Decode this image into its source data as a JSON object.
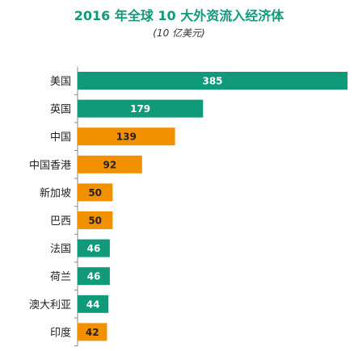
{
  "chart_data": {
    "type": "bar",
    "orientation": "horizontal",
    "title": "2016 年全球 10 大外资流入经济体",
    "subtitle": "(10 亿美元)",
    "categories": [
      "美国",
      "英国",
      "中国",
      "中国香港",
      "新加坡",
      "巴西",
      "法国",
      "荷兰",
      "澳大利亚",
      "印度"
    ],
    "values": [
      385,
      179,
      139,
      92,
      50,
      50,
      46,
      46,
      44,
      42
    ],
    "bar_colors": [
      "#119a7a",
      "#119a7a",
      "#f29100",
      "#f29100",
      "#f29100",
      "#f29100",
      "#119a7a",
      "#119a7a",
      "#119a7a",
      "#f29100"
    ],
    "value_label_colors": [
      "#ffffff",
      "#ffffff",
      "#222222",
      "#222222",
      "#222222",
      "#222222",
      "#ffffff",
      "#ffffff",
      "#ffffff",
      "#222222"
    ],
    "xlim": [
      0,
      385
    ],
    "grid": false,
    "legend": "none"
  },
  "colors": {
    "title": "#119a7a",
    "axis": "#888888"
  }
}
